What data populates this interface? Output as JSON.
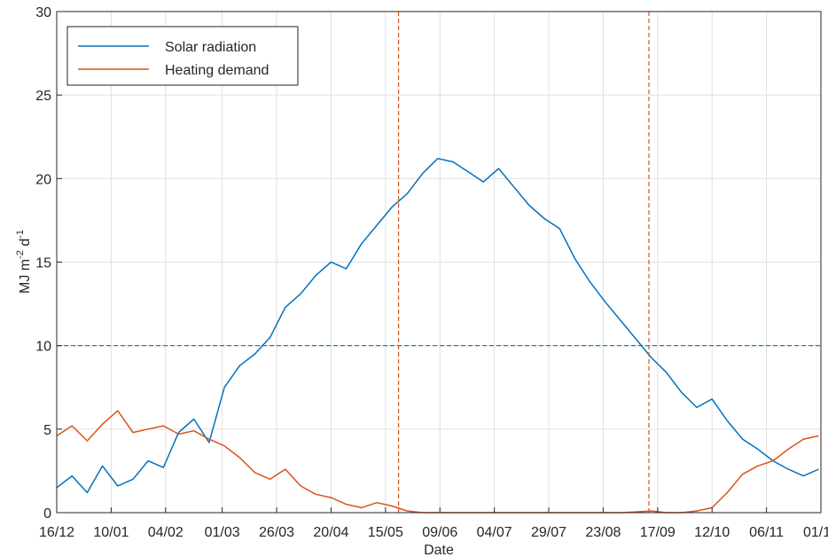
{
  "chart_data": {
    "type": "line",
    "title": "",
    "xlabel": "Date",
    "ylabel": {
      "base": "MJ m",
      "exp1": "-2",
      "mid": " d",
      "exp2": "-1"
    },
    "ylim": [
      0,
      30
    ],
    "yticks": [
      0,
      5,
      10,
      15,
      20,
      25,
      30
    ],
    "xlim": [
      "2019-12-16",
      "2020-12-01"
    ],
    "xtick_dates": [
      "2019-12-16",
      "2020-01-10",
      "2020-02-04",
      "2020-03-01",
      "2020-03-26",
      "2020-04-20",
      "2020-05-15",
      "2020-06-09",
      "2020-07-04",
      "2020-07-29",
      "2020-08-23",
      "2020-09-17",
      "2020-10-12",
      "2020-11-06",
      "2020-12-01"
    ],
    "xtick_labels": [
      "16/12",
      "10/01",
      "04/02",
      "01/03",
      "26/03",
      "20/04",
      "15/05",
      "09/06",
      "04/07",
      "29/07",
      "23/08",
      "17/09",
      "12/10",
      "06/11",
      "01/12"
    ],
    "grid": true,
    "legend_position": "top-left",
    "reference_lines": {
      "horizontal_threshold": 10,
      "vertical_dates": [
        "2020-05-21",
        "2020-09-13"
      ]
    },
    "series": [
      {
        "name": "Solar radiation",
        "color": "#0072BD",
        "x": [
          "2019-12-16",
          "2019-12-23",
          "2019-12-30",
          "2020-01-06",
          "2020-01-13",
          "2020-01-20",
          "2020-01-27",
          "2020-02-03",
          "2020-02-10",
          "2020-02-17",
          "2020-02-24",
          "2020-03-02",
          "2020-03-09",
          "2020-03-16",
          "2020-03-23",
          "2020-03-30",
          "2020-04-06",
          "2020-04-13",
          "2020-04-20",
          "2020-04-27",
          "2020-05-04",
          "2020-05-11",
          "2020-05-18",
          "2020-05-25",
          "2020-06-01",
          "2020-06-08",
          "2020-06-15",
          "2020-06-22",
          "2020-06-29",
          "2020-07-06",
          "2020-07-13",
          "2020-07-20",
          "2020-07-27",
          "2020-08-03",
          "2020-08-10",
          "2020-08-17",
          "2020-08-24",
          "2020-08-31",
          "2020-09-07",
          "2020-09-14",
          "2020-09-21",
          "2020-09-28",
          "2020-10-05",
          "2020-10-12",
          "2020-10-19",
          "2020-10-26",
          "2020-11-02",
          "2020-11-09",
          "2020-11-16",
          "2020-11-23",
          "2020-11-30"
        ],
        "values": [
          1.5,
          2.2,
          1.2,
          2.8,
          1.6,
          2.0,
          3.1,
          2.7,
          4.8,
          5.6,
          4.2,
          7.5,
          8.8,
          9.5,
          10.5,
          12.3,
          13.1,
          14.2,
          15.0,
          14.6,
          16.1,
          17.2,
          18.3,
          19.1,
          20.3,
          21.2,
          21.0,
          20.4,
          19.8,
          20.6,
          19.5,
          18.4,
          17.6,
          17.0,
          15.2,
          13.8,
          12.6,
          11.5,
          10.4,
          9.3,
          8.4,
          7.2,
          6.3,
          6.8,
          5.5,
          4.4,
          3.8,
          3.1,
          2.6,
          2.2,
          2.6
        ]
      },
      {
        "name": "Heating demand",
        "color": "#D95319",
        "x": [
          "2019-12-16",
          "2019-12-23",
          "2019-12-30",
          "2020-01-06",
          "2020-01-13",
          "2020-01-20",
          "2020-01-27",
          "2020-02-03",
          "2020-02-10",
          "2020-02-17",
          "2020-02-24",
          "2020-03-02",
          "2020-03-09",
          "2020-03-16",
          "2020-03-23",
          "2020-03-30",
          "2020-04-06",
          "2020-04-13",
          "2020-04-20",
          "2020-04-27",
          "2020-05-04",
          "2020-05-11",
          "2020-05-18",
          "2020-05-25",
          "2020-06-01",
          "2020-07-01",
          "2020-08-01",
          "2020-09-01",
          "2020-09-14",
          "2020-09-21",
          "2020-09-28",
          "2020-10-05",
          "2020-10-12",
          "2020-10-19",
          "2020-10-26",
          "2020-11-02",
          "2020-11-09",
          "2020-11-16",
          "2020-11-23",
          "2020-11-30"
        ],
        "values": [
          4.6,
          5.2,
          4.3,
          5.3,
          6.1,
          4.8,
          5.0,
          5.2,
          4.7,
          4.9,
          4.4,
          4.0,
          3.3,
          2.4,
          2.0,
          2.6,
          1.6,
          1.1,
          0.9,
          0.5,
          0.3,
          0.6,
          0.4,
          0.1,
          0,
          0,
          0,
          0,
          0.1,
          0,
          0,
          0.1,
          0.3,
          1.2,
          2.3,
          2.8,
          3.1,
          3.8,
          4.4,
          4.6
        ]
      }
    ]
  }
}
